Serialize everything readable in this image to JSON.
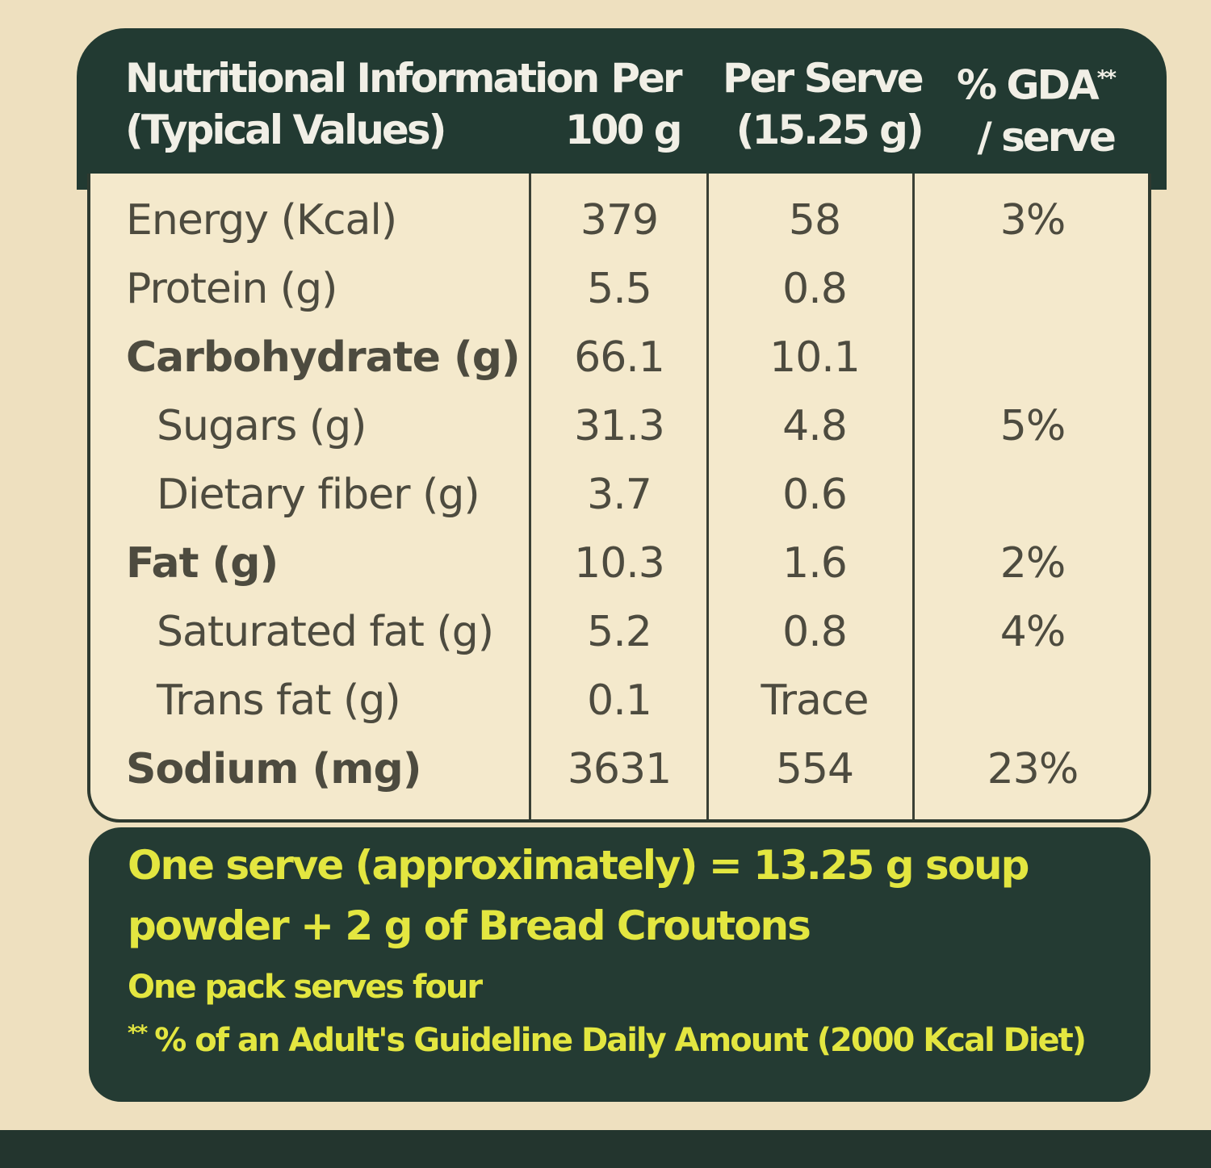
{
  "header": {
    "columns": [
      {
        "lines": [
          "Nutritional Information",
          "(Typical Values)"
        ]
      },
      {
        "lines": [
          "Per",
          "100 g"
        ]
      },
      {
        "lines": [
          "Per Serve",
          "(15.25 g)"
        ]
      },
      {
        "lines": [
          "% GDA",
          "/ serve"
        ],
        "mark": "**"
      }
    ]
  },
  "table": {
    "rows": [
      {
        "name": "Energy (Kcal)",
        "per_100g": "379",
        "per_serve": "58",
        "gda": "3%",
        "style": "regular"
      },
      {
        "name": "Protein (g)",
        "per_100g": "5.5",
        "per_serve": "0.8",
        "gda": null,
        "style": "regular"
      },
      {
        "name": "Carbohydrate (g)",
        "per_100g": "66.1",
        "per_serve": "10.1",
        "gda": null,
        "style": "bold"
      },
      {
        "name": "Sugars (g)",
        "per_100g": "31.3",
        "per_serve": "4.8",
        "gda": "5%",
        "style": "indent"
      },
      {
        "name": "Dietary fiber (g)",
        "per_100g": "3.7",
        "per_serve": "0.6",
        "gda": null,
        "style": "indent"
      },
      {
        "name": "Fat (g)",
        "per_100g": "10.3",
        "per_serve": "1.6",
        "gda": "2%",
        "style": "bold"
      },
      {
        "name": "Saturated fat (g)",
        "per_100g": "5.2",
        "per_serve": "0.8",
        "gda": "4%",
        "style": "indent"
      },
      {
        "name": "Trans fat (g)",
        "per_100g": "0.1",
        "per_serve": "Trace",
        "gda": null,
        "style": "indent"
      },
      {
        "name": "Sodium (mg)",
        "per_100g": "3631",
        "per_serve": "554",
        "gda": "23%",
        "style": "bold"
      }
    ]
  },
  "footer": {
    "serving": [
      "One serve (approximately) = 13.25 g soup",
      "powder + 2 g of Bread Croutons"
    ],
    "pack": "One pack serves four",
    "note_mark": "**",
    "note": "% of an Adult's Guideline Daily Amount (2000 Kcal Diet)"
  }
}
